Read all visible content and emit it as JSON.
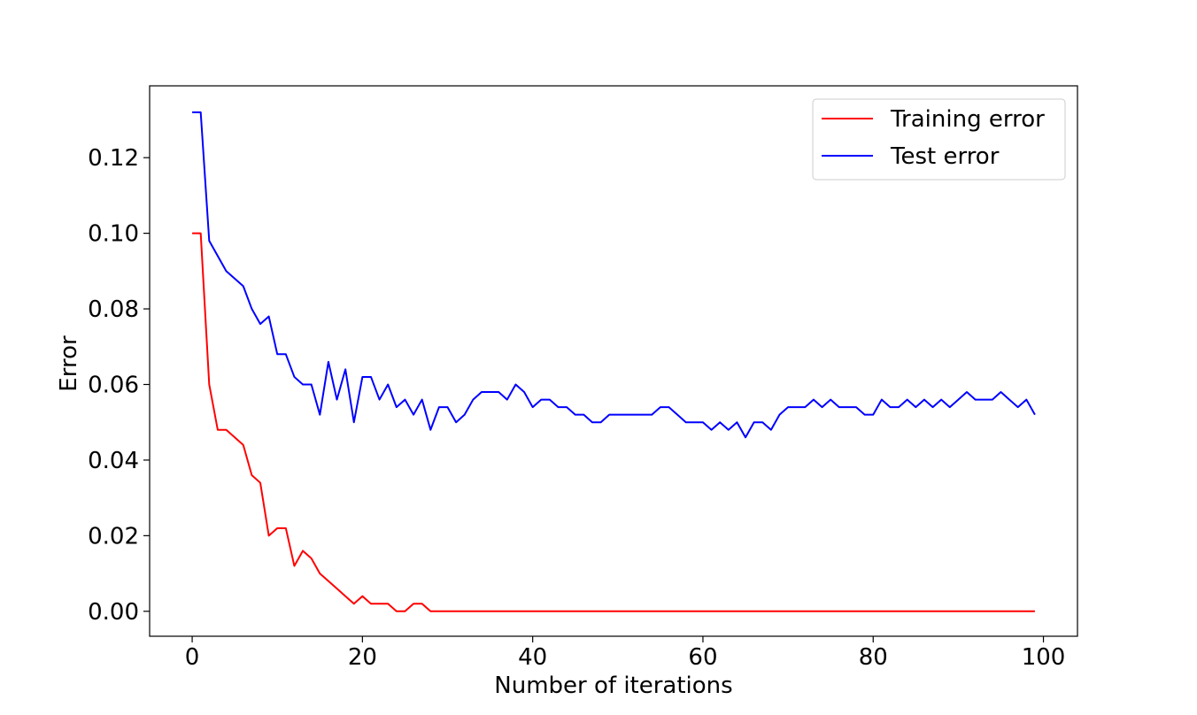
{
  "chart_data": {
    "type": "line",
    "title": "",
    "xlabel": "Number of iterations",
    "ylabel": "Error",
    "xlim": [
      -5,
      104
    ],
    "ylim": [
      -0.0066,
      0.139
    ],
    "xticks": [
      0,
      20,
      40,
      60,
      80,
      100
    ],
    "xtick_labels": [
      "0",
      "20",
      "40",
      "60",
      "80",
      "100"
    ],
    "yticks": [
      0.0,
      0.02,
      0.04,
      0.06,
      0.08,
      0.1,
      0.12
    ],
    "ytick_labels": [
      "0.00",
      "0.02",
      "0.04",
      "0.06",
      "0.08",
      "0.10",
      "0.12"
    ],
    "grid": false,
    "legend_position": "top-right",
    "x": [
      0,
      1,
      2,
      3,
      4,
      5,
      6,
      7,
      8,
      9,
      10,
      11,
      12,
      13,
      14,
      15,
      16,
      17,
      18,
      19,
      20,
      21,
      22,
      23,
      24,
      25,
      26,
      27,
      28,
      29,
      30,
      31,
      32,
      33,
      34,
      35,
      36,
      37,
      38,
      39,
      40,
      41,
      42,
      43,
      44,
      45,
      46,
      47,
      48,
      49,
      50,
      51,
      52,
      53,
      54,
      55,
      56,
      57,
      58,
      59,
      60,
      61,
      62,
      63,
      64,
      65,
      66,
      67,
      68,
      69,
      70,
      71,
      72,
      73,
      74,
      75,
      76,
      77,
      78,
      79,
      80,
      81,
      82,
      83,
      84,
      85,
      86,
      87,
      88,
      89,
      90,
      91,
      92,
      93,
      94,
      95,
      96,
      97,
      98,
      99
    ],
    "series": [
      {
        "name": "Training error",
        "color": "#ff0000",
        "values": [
          0.1,
          0.1,
          0.06,
          0.048,
          0.048,
          0.046,
          0.044,
          0.036,
          0.034,
          0.02,
          0.022,
          0.022,
          0.012,
          0.016,
          0.014,
          0.01,
          0.008,
          0.006,
          0.004,
          0.002,
          0.004,
          0.002,
          0.002,
          0.002,
          0.0,
          0.0,
          0.002,
          0.002,
          0.0,
          0.0,
          0.0,
          0.0,
          0.0,
          0.0,
          0.0,
          0.0,
          0.0,
          0.0,
          0.0,
          0.0,
          0.0,
          0.0,
          0.0,
          0.0,
          0.0,
          0.0,
          0.0,
          0.0,
          0.0,
          0.0,
          0.0,
          0.0,
          0.0,
          0.0,
          0.0,
          0.0,
          0.0,
          0.0,
          0.0,
          0.0,
          0.0,
          0.0,
          0.0,
          0.0,
          0.0,
          0.0,
          0.0,
          0.0,
          0.0,
          0.0,
          0.0,
          0.0,
          0.0,
          0.0,
          0.0,
          0.0,
          0.0,
          0.0,
          0.0,
          0.0,
          0.0,
          0.0,
          0.0,
          0.0,
          0.0,
          0.0,
          0.0,
          0.0,
          0.0,
          0.0,
          0.0,
          0.0,
          0.0,
          0.0,
          0.0,
          0.0,
          0.0,
          0.0,
          0.0,
          0.0
        ]
      },
      {
        "name": "Test error",
        "color": "#0000ff",
        "values": [
          0.132,
          0.132,
          0.098,
          0.094,
          0.09,
          0.088,
          0.086,
          0.08,
          0.076,
          0.078,
          0.068,
          0.068,
          0.062,
          0.06,
          0.06,
          0.052,
          0.066,
          0.056,
          0.064,
          0.05,
          0.062,
          0.062,
          0.056,
          0.06,
          0.054,
          0.056,
          0.052,
          0.056,
          0.048,
          0.054,
          0.054,
          0.05,
          0.052,
          0.056,
          0.058,
          0.058,
          0.058,
          0.056,
          0.06,
          0.058,
          0.054,
          0.056,
          0.056,
          0.054,
          0.054,
          0.052,
          0.052,
          0.05,
          0.05,
          0.052,
          0.052,
          0.052,
          0.052,
          0.052,
          0.052,
          0.054,
          0.054,
          0.052,
          0.05,
          0.05,
          0.05,
          0.048,
          0.05,
          0.048,
          0.05,
          0.046,
          0.05,
          0.05,
          0.048,
          0.052,
          0.054,
          0.054,
          0.054,
          0.056,
          0.054,
          0.056,
          0.054,
          0.054,
          0.054,
          0.052,
          0.052,
          0.056,
          0.054,
          0.054,
          0.056,
          0.054,
          0.056,
          0.054,
          0.056,
          0.054,
          0.056,
          0.058,
          0.056,
          0.056,
          0.056,
          0.058,
          0.056,
          0.054,
          0.056,
          0.052
        ]
      }
    ]
  }
}
